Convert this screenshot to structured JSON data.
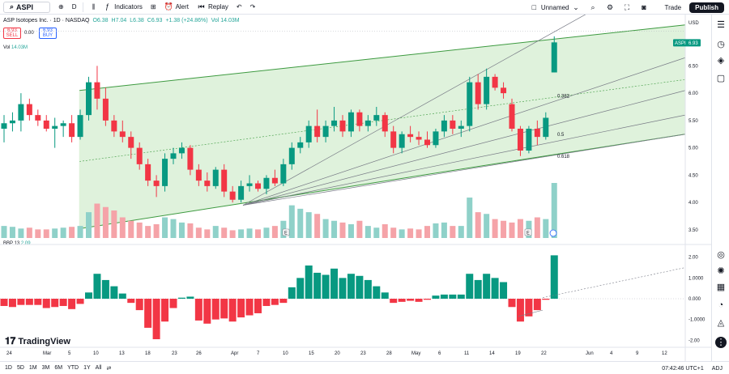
{
  "toolbar": {
    "symbol": "ASPI",
    "interval": "D",
    "indicators_label": "Indicators",
    "alert_label": "Alert",
    "replay_label": "Replay",
    "layout_name": "Unnamed",
    "trade_label": "Trade",
    "publish_label": "Publish"
  },
  "legend": {
    "title": "ASP Isotopes Inc. · 1D · NASDAQ",
    "open": "O6.38",
    "high": "H7.04",
    "low": "L6.38",
    "close": "C6.93",
    "change": "+1.38 (+24.86%)",
    "volume": "Vol 14.03M"
  },
  "trade_panel": {
    "sell_price": "6.93",
    "sell_label": "SELL",
    "spread": "0.00",
    "buy_price": "6.93",
    "buy_label": "BUY"
  },
  "volume_legend": {
    "label": "Vol",
    "value": "14.03M"
  },
  "bbp_legend": {
    "label": "BBP 13",
    "value": "2.09"
  },
  "price_axis": {
    "currency": "USD",
    "ticks": [
      "6.50",
      "6.00",
      "5.50",
      "5.00",
      "4.50",
      "4.00",
      "3.50"
    ],
    "last_symbol": "ASPI",
    "last_price": "6.93"
  },
  "bbp_axis": {
    "ticks": [
      "2.00",
      "1.0000",
      "0.000",
      "-1.0000",
      "-2.00"
    ]
  },
  "fib_levels": [
    "0.382",
    "0.5",
    "0.618"
  ],
  "time_axis": {
    "labels": [
      "24",
      "Mar",
      "5",
      "10",
      "13",
      "18",
      "23",
      "26",
      "Apr",
      "7",
      "10",
      "15",
      "20",
      "23",
      "28",
      "May",
      "6",
      "11",
      "14",
      "19",
      "22",
      "Jun",
      "4",
      "9",
      "12"
    ]
  },
  "earnings_marker": "E",
  "bottom_bar": {
    "ranges": [
      "1D",
      "5D",
      "1M",
      "3M",
      "6M",
      "YTD",
      "1Y",
      "All"
    ],
    "time": "07:42:46 UTC+1",
    "adj": "ADJ"
  },
  "brand": "TradingView",
  "colors": {
    "up": "#089981",
    "down": "#f23645",
    "vol_up": "#8fd1c9",
    "vol_down": "#f5a3a8",
    "channel_fill": "#d9f0d6",
    "channel_line": "#3d9a40",
    "accent": "#2962ff"
  },
  "chart_data": {
    "type": "candlestick",
    "ylim": [
      3.35,
      7.35
    ],
    "candles": [
      {
        "o": 5.35,
        "h": 5.6,
        "l": 5.1,
        "c": 5.45
      },
      {
        "o": 5.45,
        "h": 5.65,
        "l": 5.3,
        "c": 5.5
      },
      {
        "o": 5.5,
        "h": 6.0,
        "l": 5.3,
        "c": 5.8
      },
      {
        "o": 5.8,
        "h": 5.9,
        "l": 5.5,
        "c": 5.6
      },
      {
        "o": 5.6,
        "h": 5.7,
        "l": 5.4,
        "c": 5.5
      },
      {
        "o": 5.5,
        "h": 5.6,
        "l": 5.3,
        "c": 5.35
      },
      {
        "o": 5.35,
        "h": 5.55,
        "l": 5.0,
        "c": 5.4
      },
      {
        "o": 5.4,
        "h": 5.5,
        "l": 5.2,
        "c": 5.45
      },
      {
        "o": 5.45,
        "h": 5.6,
        "l": 5.1,
        "c": 5.2
      },
      {
        "o": 5.2,
        "h": 5.7,
        "l": 5.15,
        "c": 5.6
      },
      {
        "o": 5.6,
        "h": 6.3,
        "l": 5.5,
        "c": 6.2
      },
      {
        "o": 6.2,
        "h": 6.5,
        "l": 5.7,
        "c": 5.9
      },
      {
        "o": 5.9,
        "h": 6.1,
        "l": 5.4,
        "c": 5.5
      },
      {
        "o": 5.5,
        "h": 5.6,
        "l": 5.2,
        "c": 5.3
      },
      {
        "o": 5.3,
        "h": 5.5,
        "l": 5.1,
        "c": 5.2
      },
      {
        "o": 5.2,
        "h": 5.3,
        "l": 4.8,
        "c": 5.0
      },
      {
        "o": 5.0,
        "h": 5.1,
        "l": 4.6,
        "c": 4.7
      },
      {
        "o": 4.7,
        "h": 4.8,
        "l": 4.3,
        "c": 4.4
      },
      {
        "o": 4.4,
        "h": 4.5,
        "l": 4.1,
        "c": 4.3
      },
      {
        "o": 4.3,
        "h": 4.9,
        "l": 4.2,
        "c": 4.8
      },
      {
        "o": 4.8,
        "h": 5.0,
        "l": 4.7,
        "c": 4.9
      },
      {
        "o": 4.9,
        "h": 5.1,
        "l": 4.8,
        "c": 5.0
      },
      {
        "o": 5.0,
        "h": 5.05,
        "l": 4.5,
        "c": 4.6
      },
      {
        "o": 4.6,
        "h": 4.7,
        "l": 4.3,
        "c": 4.4
      },
      {
        "o": 4.4,
        "h": 4.55,
        "l": 4.2,
        "c": 4.3
      },
      {
        "o": 4.3,
        "h": 4.65,
        "l": 4.25,
        "c": 4.6
      },
      {
        "o": 4.6,
        "h": 4.7,
        "l": 4.1,
        "c": 4.2
      },
      {
        "o": 4.2,
        "h": 4.3,
        "l": 4.0,
        "c": 4.05
      },
      {
        "o": 4.05,
        "h": 4.4,
        "l": 4.0,
        "c": 4.3
      },
      {
        "o": 4.3,
        "h": 4.5,
        "l": 4.2,
        "c": 4.35
      },
      {
        "o": 4.35,
        "h": 4.4,
        "l": 4.2,
        "c": 4.25
      },
      {
        "o": 4.25,
        "h": 4.5,
        "l": 4.15,
        "c": 4.45
      },
      {
        "o": 4.45,
        "h": 4.6,
        "l": 4.3,
        "c": 4.35
      },
      {
        "o": 4.35,
        "h": 4.8,
        "l": 4.3,
        "c": 4.7
      },
      {
        "o": 4.7,
        "h": 5.1,
        "l": 4.6,
        "c": 5.0
      },
      {
        "o": 5.0,
        "h": 5.2,
        "l": 4.9,
        "c": 5.1
      },
      {
        "o": 5.1,
        "h": 5.5,
        "l": 5.0,
        "c": 5.4
      },
      {
        "o": 5.4,
        "h": 5.7,
        "l": 5.1,
        "c": 5.2
      },
      {
        "o": 5.2,
        "h": 5.5,
        "l": 5.1,
        "c": 5.4
      },
      {
        "o": 5.4,
        "h": 5.75,
        "l": 5.3,
        "c": 5.5
      },
      {
        "o": 5.5,
        "h": 5.6,
        "l": 5.2,
        "c": 5.3
      },
      {
        "o": 5.3,
        "h": 5.7,
        "l": 5.2,
        "c": 5.65
      },
      {
        "o": 5.65,
        "h": 5.7,
        "l": 5.3,
        "c": 5.4
      },
      {
        "o": 5.4,
        "h": 5.6,
        "l": 5.3,
        "c": 5.5
      },
      {
        "o": 5.5,
        "h": 5.75,
        "l": 5.4,
        "c": 5.6
      },
      {
        "o": 5.6,
        "h": 5.65,
        "l": 5.2,
        "c": 5.3
      },
      {
        "o": 5.3,
        "h": 5.4,
        "l": 4.9,
        "c": 5.0
      },
      {
        "o": 5.0,
        "h": 5.3,
        "l": 4.9,
        "c": 5.25
      },
      {
        "o": 5.25,
        "h": 5.4,
        "l": 5.1,
        "c": 5.2
      },
      {
        "o": 5.2,
        "h": 5.3,
        "l": 5.05,
        "c": 5.15
      },
      {
        "o": 5.15,
        "h": 5.3,
        "l": 5.0,
        "c": 5.05
      },
      {
        "o": 5.05,
        "h": 5.35,
        "l": 5.0,
        "c": 5.3
      },
      {
        "o": 5.3,
        "h": 5.6,
        "l": 5.2,
        "c": 5.5
      },
      {
        "o": 5.5,
        "h": 5.6,
        "l": 5.25,
        "c": 5.35
      },
      {
        "o": 5.35,
        "h": 5.5,
        "l": 5.2,
        "c": 5.4
      },
      {
        "o": 5.4,
        "h": 6.3,
        "l": 5.3,
        "c": 6.2
      },
      {
        "o": 6.2,
        "h": 6.35,
        "l": 5.7,
        "c": 5.8
      },
      {
        "o": 5.8,
        "h": 6.45,
        "l": 5.7,
        "c": 6.3
      },
      {
        "o": 6.3,
        "h": 6.35,
        "l": 6.05,
        "c": 6.1
      },
      {
        "o": 6.1,
        "h": 6.2,
        "l": 5.9,
        "c": 6.0
      },
      {
        "o": 5.8,
        "h": 5.9,
        "l": 5.3,
        "c": 5.35
      },
      {
        "o": 5.35,
        "h": 5.4,
        "l": 4.85,
        "c": 4.95
      },
      {
        "o": 4.95,
        "h": 5.4,
        "l": 4.9,
        "c": 5.35
      },
      {
        "o": 5.35,
        "h": 5.5,
        "l": 5.05,
        "c": 5.2
      },
      {
        "o": 5.2,
        "h": 5.65,
        "l": 5.15,
        "c": 5.55
      },
      {
        "o": 6.38,
        "h": 7.04,
        "l": 6.38,
        "c": 6.93
      }
    ],
    "volume": [
      14,
      13,
      11,
      12,
      10,
      10,
      11,
      12,
      13,
      14,
      30,
      40,
      36,
      32,
      24,
      20,
      18,
      14,
      16,
      24,
      22,
      18,
      17,
      12,
      10,
      14,
      12,
      9,
      10,
      11,
      10,
      12,
      14,
      20,
      38,
      34,
      30,
      28,
      22,
      20,
      18,
      16,
      20,
      14,
      12,
      16,
      12,
      10,
      11,
      10,
      14,
      17,
      18,
      14,
      14,
      47,
      30,
      28,
      22,
      20,
      18,
      22,
      20,
      24,
      22,
      64
    ],
    "bbp": [
      -0.35,
      -0.4,
      -0.3,
      -0.3,
      -0.3,
      -0.45,
      -0.4,
      -0.35,
      -0.5,
      -0.25,
      0.3,
      1.2,
      0.9,
      0.6,
      0.25,
      -0.2,
      -0.55,
      -1.4,
      -1.95,
      -1.1,
      -0.45,
      0.05,
      0.1,
      -1.05,
      -1.2,
      -1.0,
      -0.95,
      -1.1,
      -0.9,
      -0.8,
      -0.7,
      -0.35,
      -0.3,
      -0.2,
      0.55,
      1.0,
      1.6,
      1.25,
      1.15,
      1.45,
      1.0,
      1.2,
      1.1,
      0.9,
      0.6,
      0.3,
      -0.2,
      -0.15,
      -0.1,
      -0.15,
      -0.05,
      0.15,
      0.2,
      0.2,
      0.2,
      1.2,
      0.9,
      1.2,
      1.0,
      0.8,
      -0.4,
      -1.1,
      -0.85,
      -0.55,
      -0.05,
      2.09
    ],
    "bbp_ylim": [
      -2.3,
      2.3
    ],
    "fib_lines": [
      {
        "label": "0.382",
        "y_left": 4.6,
        "y_right": 6.3
      },
      {
        "label": "0.5",
        "y_left": 4.25,
        "y_right": 5.6
      },
      {
        "label": "0.618",
        "y_left": 3.9,
        "y_right": 5.2
      }
    ]
  }
}
